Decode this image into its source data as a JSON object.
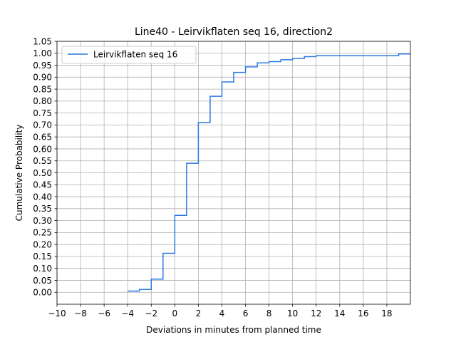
{
  "chart_data": {
    "type": "line",
    "step": "post",
    "title": "Line40 - Leirvikflaten seq 16, direction2",
    "xlabel": "Deviations in minutes from planned time",
    "ylabel": "Cumulative Probability",
    "xlim": [
      -10,
      20
    ],
    "ylim": [
      -0.05,
      1.05
    ],
    "xticks": [
      -10,
      -8,
      -6,
      -4,
      -2,
      0,
      2,
      4,
      6,
      8,
      10,
      12,
      14,
      16,
      18
    ],
    "xtick_labels": [
      "−10",
      "−8",
      "−6",
      "−4",
      "−2",
      "0",
      "2",
      "4",
      "6",
      "8",
      "10",
      "12",
      "14",
      "16",
      "18"
    ],
    "yticks": [
      0,
      0.05,
      0.1,
      0.15,
      0.2,
      0.25,
      0.3,
      0.35,
      0.4,
      0.45,
      0.5,
      0.55,
      0.6,
      0.65,
      0.7,
      0.75,
      0.8,
      0.85,
      0.9,
      0.95,
      1.0,
      1.05
    ],
    "ytick_labels": [
      "0.00",
      "0.05",
      "0.10",
      "0.15",
      "0.20",
      "0.25",
      "0.30",
      "0.35",
      "0.40",
      "0.45",
      "0.50",
      "0.55",
      "0.60",
      "0.65",
      "0.70",
      "0.75",
      "0.80",
      "0.85",
      "0.90",
      "0.95",
      "1.00",
      "1.05"
    ],
    "grid": true,
    "legend_position": "top-left",
    "series": [
      {
        "name": "Leirvikflaten seq 16",
        "color": "#2a7ae2",
        "x": [
          -4,
          -3,
          -2,
          -1,
          0,
          1,
          2,
          3,
          4,
          5,
          6,
          7,
          8,
          9,
          10,
          11,
          12,
          19,
          20
        ],
        "y": [
          0.005,
          0.012,
          0.055,
          0.163,
          0.322,
          0.54,
          0.71,
          0.82,
          0.88,
          0.92,
          0.943,
          0.96,
          0.965,
          0.973,
          0.978,
          0.986,
          0.99,
          0.997,
          0.997
        ]
      }
    ]
  }
}
